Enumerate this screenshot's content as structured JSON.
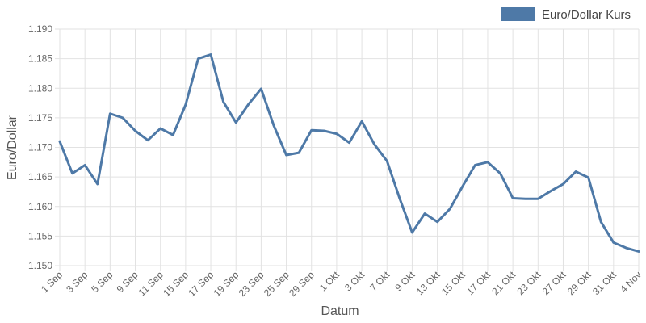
{
  "chart_data": {
    "type": "line",
    "xlabel": "Datum",
    "ylabel": "Euro/Dollar",
    "ylim": [
      1.15,
      1.19
    ],
    "yticks": [
      "1.150",
      "1.155",
      "1.160",
      "1.165",
      "1.170",
      "1.175",
      "1.180",
      "1.185",
      "1.190"
    ],
    "grid": true,
    "legend_position": "top-right",
    "x": [
      "1 Sep",
      "2 Sep",
      "3 Sep",
      "4 Sep",
      "5 Sep",
      "8 Sep",
      "9 Sep",
      "10 Sep",
      "11 Sep",
      "12 Sep",
      "15 Sep",
      "16 Sep",
      "17 Sep",
      "18 Sep",
      "19 Sep",
      "22 Sep",
      "23 Sep",
      "24 Sep",
      "25 Sep",
      "26 Sep",
      "29 Sep",
      "30 Sep",
      "1 Okt",
      "2 Okt",
      "3 Okt",
      "6 Okt",
      "7 Okt",
      "8 Okt",
      "9 Okt",
      "10 Okt",
      "13 Okt",
      "14 Okt",
      "15 Okt",
      "16 Okt",
      "17 Okt",
      "20 Okt",
      "21 Okt",
      "22 Okt",
      "23 Okt",
      "24 Okt",
      "27 Okt",
      "28 Okt",
      "29 Okt",
      "30 Okt",
      "31 Okt",
      "3 Nov",
      "4 Nov"
    ],
    "xtick_labels": [
      "1 Sep",
      "3 Sep",
      "5 Sep",
      "9 Sep",
      "11 Sep",
      "15 Sep",
      "17 Sep",
      "19 Sep",
      "23 Sep",
      "25 Sep",
      "29 Sep",
      "1 Okt",
      "3 Okt",
      "7 Okt",
      "9 Okt",
      "13 Okt",
      "15 Okt",
      "17 Okt",
      "21 Okt",
      "23 Okt",
      "27 Okt",
      "29 Okt",
      "31 Okt",
      "4 Nov"
    ],
    "series": [
      {
        "name": "Euro/Dollar Kurs",
        "color": "#4e79a7",
        "values": [
          1.171,
          1.1656,
          1.167,
          1.1638,
          1.1757,
          1.175,
          1.1728,
          1.1712,
          1.1732,
          1.1721,
          1.1772,
          1.185,
          1.1857,
          1.1777,
          1.1742,
          1.1773,
          1.1799,
          1.1737,
          1.1687,
          1.1691,
          1.1729,
          1.1728,
          1.1723,
          1.1708,
          1.1744,
          1.1705,
          1.1677,
          1.1614,
          1.1556,
          1.1588,
          1.1574,
          1.1596,
          1.1634,
          1.167,
          1.1675,
          1.1656,
          1.1614,
          1.1613,
          1.1613,
          1.1626,
          1.1638,
          1.1659,
          1.1649,
          1.1574,
          1.1539,
          1.153,
          1.1524
        ]
      }
    ]
  }
}
